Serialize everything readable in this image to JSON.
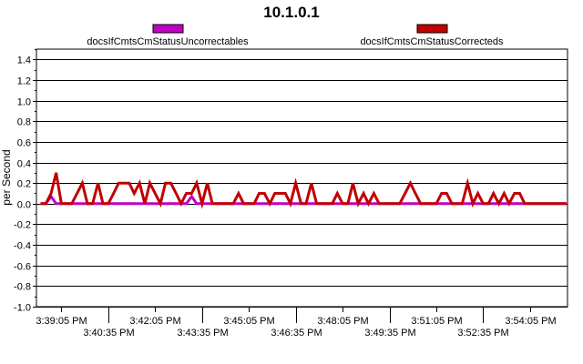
{
  "chart_data": {
    "type": "line",
    "title": "10.1.0.1",
    "ylabel": "per Second",
    "xlabel": "",
    "ylim": [
      -1.0,
      1.5
    ],
    "yticks": [
      "1.4",
      "1.2",
      "1.0",
      "0.8",
      "0.6",
      "0.4",
      "0.2",
      "0.0",
      "-0.2",
      "-0.4",
      "-0.6",
      "-0.8",
      "-1.0"
    ],
    "ytick_values": [
      1.4,
      1.2,
      1.0,
      0.8,
      0.6,
      0.4,
      0.2,
      0.0,
      -0.2,
      -0.4,
      -0.6,
      -0.8,
      -1.0
    ],
    "xlim_minutes": [
      -0.8,
      16.2
    ],
    "xticks": [
      {
        "label": "3:39:05 PM",
        "t": 0.0,
        "row": 1
      },
      {
        "label": "3:40:35 PM",
        "t": 1.5,
        "row": 2
      },
      {
        "label": "3:42:05 PM",
        "t": 3.0,
        "row": 1
      },
      {
        "label": "3:43:35 PM",
        "t": 4.5,
        "row": 2
      },
      {
        "label": "3:45:05 PM",
        "t": 6.0,
        "row": 1
      },
      {
        "label": "3:46:35 PM",
        "t": 7.5,
        "row": 2
      },
      {
        "label": "3:48:05 PM",
        "t": 9.0,
        "row": 1
      },
      {
        "label": "3:49:35 PM",
        "t": 10.5,
        "row": 2
      },
      {
        "label": "3:51:05 PM",
        "t": 12.0,
        "row": 1
      },
      {
        "label": "3:52:35 PM",
        "t": 13.5,
        "row": 2
      },
      {
        "label": "3:54:05 PM",
        "t": 15.0,
        "row": 1
      }
    ],
    "grid": true,
    "legend_position": "top",
    "series": [
      {
        "name": "docsIfCmtsCmStatusUncorrectables",
        "color": "#c000c0",
        "points": [
          [
            -0.67,
            0
          ],
          [
            -0.5,
            0
          ],
          [
            -0.33,
            0.07
          ],
          [
            -0.17,
            0
          ],
          [
            4.0,
            0
          ],
          [
            4.17,
            0.07
          ],
          [
            4.33,
            0
          ],
          [
            16.17,
            0
          ]
        ]
      },
      {
        "name": "docsIfCmtsCmStatusCorrecteds",
        "color": "#c00000",
        "points": [
          [
            -0.67,
            0
          ],
          [
            -0.5,
            0
          ],
          [
            -0.33,
            0.1
          ],
          [
            -0.17,
            0.3
          ],
          [
            0.0,
            0
          ],
          [
            0.17,
            0
          ],
          [
            0.33,
            0
          ],
          [
            0.5,
            0.1
          ],
          [
            0.67,
            0.2
          ],
          [
            0.83,
            0
          ],
          [
            1.0,
            0
          ],
          [
            1.17,
            0.2
          ],
          [
            1.33,
            0
          ],
          [
            1.5,
            0
          ],
          [
            1.67,
            0.1
          ],
          [
            1.83,
            0.2
          ],
          [
            2.0,
            0.2
          ],
          [
            2.17,
            0.2
          ],
          [
            2.33,
            0.1
          ],
          [
            2.5,
            0.2
          ],
          [
            2.67,
            0
          ],
          [
            2.83,
            0.2
          ],
          [
            3.0,
            0.1
          ],
          [
            3.17,
            0
          ],
          [
            3.33,
            0.2
          ],
          [
            3.5,
            0.2
          ],
          [
            3.67,
            0.1
          ],
          [
            3.83,
            0
          ],
          [
            4.0,
            0.1
          ],
          [
            4.17,
            0.1
          ],
          [
            4.33,
            0.2
          ],
          [
            4.5,
            0
          ],
          [
            4.67,
            0.2
          ],
          [
            4.83,
            0
          ],
          [
            5.0,
            0
          ],
          [
            5.17,
            0
          ],
          [
            5.33,
            0
          ],
          [
            5.5,
            0
          ],
          [
            5.67,
            0.1
          ],
          [
            5.83,
            0
          ],
          [
            6.0,
            0
          ],
          [
            6.17,
            0
          ],
          [
            6.33,
            0.1
          ],
          [
            6.5,
            0.1
          ],
          [
            6.67,
            0
          ],
          [
            6.83,
            0.1
          ],
          [
            7.0,
            0.1
          ],
          [
            7.17,
            0.1
          ],
          [
            7.33,
            0
          ],
          [
            7.5,
            0.2
          ],
          [
            7.67,
            0
          ],
          [
            7.83,
            0
          ],
          [
            8.0,
            0.2
          ],
          [
            8.17,
            0
          ],
          [
            8.33,
            0
          ],
          [
            8.5,
            0
          ],
          [
            8.67,
            0
          ],
          [
            8.83,
            0.1
          ],
          [
            9.0,
            0
          ],
          [
            9.17,
            0
          ],
          [
            9.33,
            0.2
          ],
          [
            9.5,
            0
          ],
          [
            9.67,
            0.1
          ],
          [
            9.83,
            0
          ],
          [
            10.0,
            0.1
          ],
          [
            10.17,
            0
          ],
          [
            10.33,
            0
          ],
          [
            10.5,
            0
          ],
          [
            10.67,
            0
          ],
          [
            10.83,
            0
          ],
          [
            11.0,
            0.1
          ],
          [
            11.17,
            0.2
          ],
          [
            11.33,
            0.1
          ],
          [
            11.5,
            0
          ],
          [
            11.67,
            0
          ],
          [
            11.83,
            0
          ],
          [
            12.0,
            0
          ],
          [
            12.17,
            0.1
          ],
          [
            12.33,
            0.1
          ],
          [
            12.5,
            0
          ],
          [
            12.67,
            0
          ],
          [
            12.83,
            0
          ],
          [
            13.0,
            0.2
          ],
          [
            13.17,
            0
          ],
          [
            13.33,
            0.1
          ],
          [
            13.5,
            0
          ],
          [
            13.67,
            0
          ],
          [
            13.83,
            0.1
          ],
          [
            14.0,
            0
          ],
          [
            14.17,
            0.1
          ],
          [
            14.33,
            0
          ],
          [
            14.5,
            0.1
          ],
          [
            14.67,
            0.1
          ],
          [
            14.83,
            0
          ],
          [
            15.0,
            0
          ],
          [
            15.17,
            0
          ],
          [
            15.33,
            0
          ],
          [
            15.5,
            0
          ],
          [
            15.67,
            0
          ],
          [
            15.83,
            0
          ],
          [
            16.0,
            0
          ],
          [
            16.17,
            0
          ]
        ]
      }
    ]
  }
}
